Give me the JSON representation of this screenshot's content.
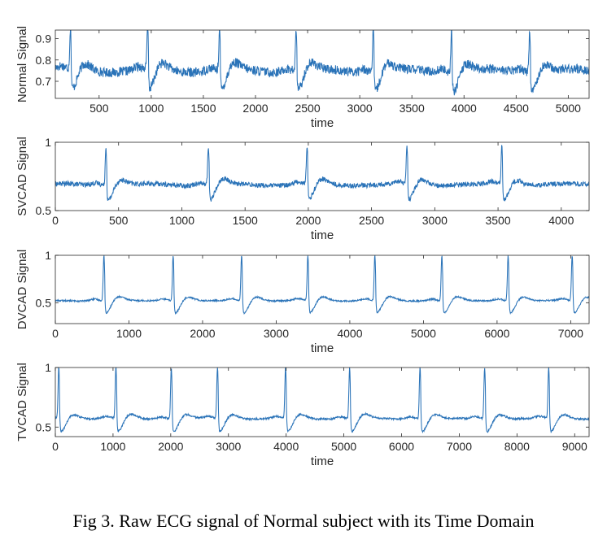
{
  "caption": "Fig 3. Raw ECG signal of Normal subject with its Time Domain",
  "chart_data": [
    {
      "type": "line",
      "ylabel": "Normal Signal",
      "xlabel": "time",
      "xlim": [
        80,
        5200
      ],
      "ylim": [
        0.62,
        0.94
      ],
      "xticks": [
        500,
        1000,
        1500,
        2000,
        2500,
        3000,
        3500,
        4000,
        4500,
        5000
      ],
      "yticks": [
        0.7,
        0.8,
        0.9
      ],
      "ytick_labels": [
        "0.7",
        "0.8",
        "0.9"
      ],
      "baseline": 0.75,
      "peak": 0.94,
      "trough": 0.65,
      "noise": 0.022,
      "r_peaks": [
        225,
        965,
        1655,
        2390,
        3130,
        3880,
        4630
      ],
      "color": "#2a73b8"
    },
    {
      "type": "line",
      "ylabel": "SVCAD Signal",
      "xlabel": "time",
      "xlim": [
        0,
        4220
      ],
      "ylim": [
        0.5,
        1.0
      ],
      "xticks": [
        0,
        500,
        1000,
        1500,
        2000,
        2500,
        3000,
        3500,
        4000
      ],
      "yticks": [
        0.5,
        1.0
      ],
      "ytick_labels": [
        "0.5",
        "1"
      ],
      "baseline": 0.69,
      "peak": 0.97,
      "trough": 0.57,
      "noise": 0.018,
      "r_peaks": [
        400,
        1210,
        1990,
        2780,
        3530
      ],
      "color": "#2a73b8"
    },
    {
      "type": "line",
      "ylabel": "DVCAD Signal",
      "xlabel": "time",
      "xlim": [
        0,
        7250
      ],
      "ylim": [
        0.28,
        1.0
      ],
      "xticks": [
        0,
        1000,
        2000,
        3000,
        4000,
        5000,
        6000,
        7000
      ],
      "yticks": [
        0.5,
        1.0
      ],
      "ytick_labels": [
        "0.5",
        "1"
      ],
      "baseline": 0.52,
      "peak": 1.0,
      "trough": 0.38,
      "noise": 0.008,
      "r_peaks": [
        660,
        1600,
        2530,
        3430,
        4340,
        5250,
        6150,
        7020
      ],
      "color": "#2a73b8"
    },
    {
      "type": "line",
      "ylabel": "TVCAD Signal",
      "xlabel": "time",
      "xlim": [
        0,
        9250
      ],
      "ylim": [
        0.42,
        1.0
      ],
      "xticks": [
        0,
        1000,
        2000,
        3000,
        4000,
        5000,
        6000,
        7000,
        8000,
        9000
      ],
      "yticks": [
        0.5,
        1.0
      ],
      "ytick_labels": [
        "0.5",
        "1"
      ],
      "baseline": 0.57,
      "peak": 1.0,
      "trough": 0.45,
      "noise": 0.008,
      "r_peaks": [
        60,
        1050,
        2010,
        2810,
        3990,
        5100,
        6320,
        7440,
        8550
      ],
      "color": "#2a73b8"
    }
  ]
}
